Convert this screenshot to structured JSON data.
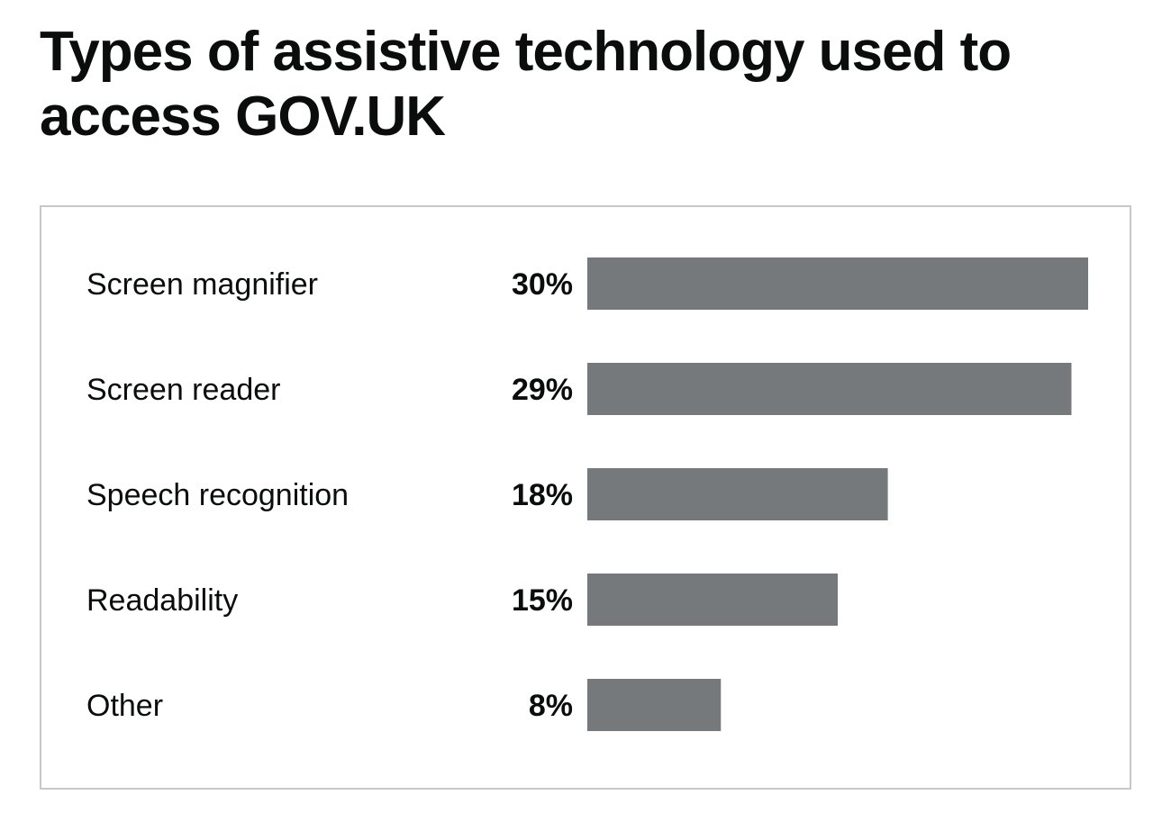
{
  "chart_data": {
    "type": "bar",
    "orientation": "horizontal",
    "title": "Types of assistive technology used to access GOV.UK",
    "categories": [
      "Screen magnifier",
      "Screen reader",
      "Speech recognition",
      "Readability",
      "Other"
    ],
    "values": [
      30,
      29,
      18,
      15,
      8
    ],
    "value_labels": [
      "30%",
      "29%",
      "18%",
      "15%",
      "8%"
    ],
    "unit": "%",
    "xlim": [
      0,
      30
    ],
    "grid": false,
    "legend": "none",
    "bar_color": "#75797c"
  }
}
